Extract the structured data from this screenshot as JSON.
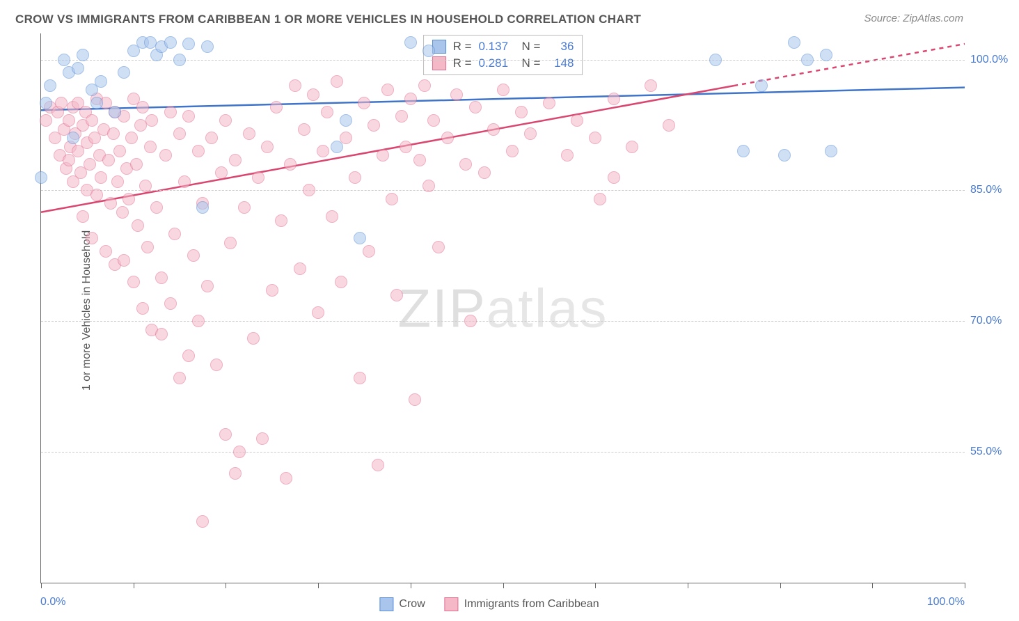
{
  "title": "CROW VS IMMIGRANTS FROM CARIBBEAN 1 OR MORE VEHICLES IN HOUSEHOLD CORRELATION CHART",
  "source": "Source: ZipAtlas.com",
  "ylabel": "1 or more Vehicles in Household",
  "watermark_a": "ZIP",
  "watermark_b": "atlas",
  "xaxis": {
    "min_label": "0.0%",
    "max_label": "100.0%",
    "min": 0,
    "max": 100,
    "ticks": [
      0,
      10,
      20,
      30,
      40,
      50,
      60,
      70,
      80,
      90,
      100
    ]
  },
  "yaxis": {
    "min": 40,
    "max": 103,
    "gridlines": [
      55,
      70,
      85,
      100
    ],
    "labels": {
      "55": "55.0%",
      "70": "70.0%",
      "85": "85.0%",
      "100": "100.0%"
    }
  },
  "colors": {
    "series1_fill": "#a9c5ec",
    "series1_stroke": "#5a8fd6",
    "series2_fill": "#f4b8c7",
    "series2_stroke": "#e16f91",
    "trend1": "#3f74c9",
    "trend2": "#d9466f",
    "axis_label": "#4a7bd0",
    "grid": "#cccccc",
    "text": "#555555",
    "border": "#666666"
  },
  "marker_radius": 9,
  "trend_width": 2.5,
  "series": [
    {
      "name": "Crow",
      "r": "0.137",
      "n": "36",
      "trend": {
        "x1": 0,
        "y1": 94.2,
        "x2": 100,
        "y2": 96.8,
        "dash_from_x": 100
      },
      "color_fill": "#a9c5ec",
      "color_stroke": "#5a8fd6",
      "points": [
        [
          0,
          86.5
        ],
        [
          0.5,
          95
        ],
        [
          1,
          97
        ],
        [
          2.5,
          100
        ],
        [
          3,
          98.5
        ],
        [
          3.5,
          91
        ],
        [
          4,
          99
        ],
        [
          4.5,
          100.5
        ],
        [
          5.5,
          96.5
        ],
        [
          6,
          95
        ],
        [
          6.5,
          97.5
        ],
        [
          8,
          94
        ],
        [
          9,
          98.5
        ],
        [
          10,
          101
        ],
        [
          11,
          102
        ],
        [
          11.8,
          102
        ],
        [
          12.5,
          100.5
        ],
        [
          13,
          101.5
        ],
        [
          14,
          102
        ],
        [
          15,
          100
        ],
        [
          16,
          101.8
        ],
        [
          17.5,
          83
        ],
        [
          18,
          101.5
        ],
        [
          32,
          90
        ],
        [
          33,
          93
        ],
        [
          34.5,
          79.5
        ],
        [
          40,
          102
        ],
        [
          42,
          101
        ],
        [
          73,
          100
        ],
        [
          76,
          89.5
        ],
        [
          78,
          97
        ],
        [
          80.5,
          89
        ],
        [
          81.5,
          102
        ],
        [
          83,
          100
        ],
        [
          85,
          100.5
        ],
        [
          85.5,
          89.5
        ]
      ]
    },
    {
      "name": "Immigrants from Caribbean",
      "r": "0.281",
      "n": "148",
      "trend": {
        "x1": 0,
        "y1": 82.5,
        "x2": 75,
        "y2": 97,
        "dash_from_x": 75,
        "x3": 100,
        "y3": 101.8
      },
      "color_fill": "#f4b8c7",
      "color_stroke": "#e16f91",
      "points": [
        [
          0.5,
          93
        ],
        [
          1,
          94.5
        ],
        [
          1.5,
          91
        ],
        [
          1.8,
          94
        ],
        [
          2,
          89
        ],
        [
          2.2,
          95
        ],
        [
          2.5,
          92
        ],
        [
          2.7,
          87.5
        ],
        [
          3,
          88.5
        ],
        [
          3,
          93
        ],
        [
          3.2,
          90
        ],
        [
          3.5,
          94.5
        ],
        [
          3.5,
          86
        ],
        [
          3.7,
          91.5
        ],
        [
          4,
          89.5
        ],
        [
          4,
          95
        ],
        [
          4.3,
          87
        ],
        [
          4.5,
          92.5
        ],
        [
          4.5,
          82
        ],
        [
          4.8,
          94
        ],
        [
          5,
          90.5
        ],
        [
          5,
          85
        ],
        [
          5.3,
          88
        ],
        [
          5.5,
          93
        ],
        [
          5.5,
          79.5
        ],
        [
          5.8,
          91
        ],
        [
          6,
          84.5
        ],
        [
          6,
          95.5
        ],
        [
          6.3,
          89
        ],
        [
          6.5,
          86.5
        ],
        [
          6.8,
          92
        ],
        [
          7,
          78
        ],
        [
          7,
          95
        ],
        [
          7.3,
          88.5
        ],
        [
          7.5,
          83.5
        ],
        [
          7.8,
          91.5
        ],
        [
          8,
          76.5
        ],
        [
          8,
          94
        ],
        [
          8.3,
          86
        ],
        [
          8.5,
          89.5
        ],
        [
          8.8,
          82.5
        ],
        [
          9,
          93.5
        ],
        [
          9,
          77
        ],
        [
          9.3,
          87.5
        ],
        [
          9.5,
          84
        ],
        [
          9.8,
          91
        ],
        [
          10,
          74.5
        ],
        [
          10,
          95.5
        ],
        [
          10.3,
          88
        ],
        [
          10.5,
          81
        ],
        [
          10.8,
          92.5
        ],
        [
          11,
          71.5
        ],
        [
          11,
          94.5
        ],
        [
          11.3,
          85.5
        ],
        [
          11.5,
          78.5
        ],
        [
          11.8,
          90
        ],
        [
          12,
          69
        ],
        [
          12,
          93
        ],
        [
          12.5,
          83
        ],
        [
          13,
          75
        ],
        [
          13,
          68.5
        ],
        [
          13.5,
          89
        ],
        [
          14,
          72
        ],
        [
          14,
          94
        ],
        [
          14.5,
          80
        ],
        [
          15,
          63.5
        ],
        [
          15,
          91.5
        ],
        [
          15.5,
          86
        ],
        [
          16,
          66
        ],
        [
          16,
          93.5
        ],
        [
          16.5,
          77.5
        ],
        [
          17,
          70
        ],
        [
          17,
          89.5
        ],
        [
          17.5,
          83.5
        ],
        [
          17.5,
          47
        ],
        [
          18,
          74
        ],
        [
          18.5,
          91
        ],
        [
          19,
          65
        ],
        [
          19.5,
          87
        ],
        [
          20,
          57
        ],
        [
          20,
          93
        ],
        [
          20.5,
          79
        ],
        [
          21,
          52.5
        ],
        [
          21,
          88.5
        ],
        [
          21.5,
          55
        ],
        [
          22,
          83
        ],
        [
          22.5,
          91.5
        ],
        [
          23,
          68
        ],
        [
          23.5,
          86.5
        ],
        [
          24,
          56.5
        ],
        [
          24.5,
          90
        ],
        [
          25,
          73.5
        ],
        [
          25.5,
          94.5
        ],
        [
          26,
          81.5
        ],
        [
          26.5,
          52
        ],
        [
          27,
          88
        ],
        [
          27.5,
          97
        ],
        [
          28,
          76
        ],
        [
          28.5,
          92
        ],
        [
          29,
          85
        ],
        [
          29.5,
          96
        ],
        [
          30,
          71
        ],
        [
          30.5,
          89.5
        ],
        [
          31,
          94
        ],
        [
          31.5,
          82
        ],
        [
          32,
          97.5
        ],
        [
          32.5,
          74.5
        ],
        [
          33,
          91
        ],
        [
          34,
          86.5
        ],
        [
          34.5,
          63.5
        ],
        [
          35,
          95
        ],
        [
          35.5,
          78
        ],
        [
          36,
          92.5
        ],
        [
          36.5,
          53.5
        ],
        [
          37,
          89
        ],
        [
          37.5,
          96.5
        ],
        [
          38,
          84
        ],
        [
          38.5,
          73
        ],
        [
          39,
          93.5
        ],
        [
          39.5,
          90
        ],
        [
          40,
          95.5
        ],
        [
          40.5,
          61
        ],
        [
          41,
          88.5
        ],
        [
          41.5,
          97
        ],
        [
          42,
          85.5
        ],
        [
          42.5,
          93
        ],
        [
          43,
          78.5
        ],
        [
          44,
          91
        ],
        [
          45,
          96
        ],
        [
          46,
          88
        ],
        [
          46.5,
          70
        ],
        [
          47,
          94.5
        ],
        [
          48,
          87
        ],
        [
          49,
          92
        ],
        [
          50,
          96.5
        ],
        [
          51,
          89.5
        ],
        [
          52,
          94
        ],
        [
          53,
          91.5
        ],
        [
          55,
          95
        ],
        [
          57,
          89
        ],
        [
          58,
          93
        ],
        [
          60,
          91
        ],
        [
          60.5,
          84
        ],
        [
          62,
          95.5
        ],
        [
          62,
          86.5
        ],
        [
          64,
          90
        ],
        [
          66,
          97
        ],
        [
          68,
          92.5
        ]
      ]
    }
  ],
  "bottom_legend": [
    {
      "label": "Crow",
      "fill": "#a9c5ec",
      "stroke": "#5a8fd6"
    },
    {
      "label": "Immigrants from Caribbean",
      "fill": "#f4b8c7",
      "stroke": "#e16f91"
    }
  ],
  "top_legend_labels": {
    "r": "R =",
    "n": "N ="
  }
}
